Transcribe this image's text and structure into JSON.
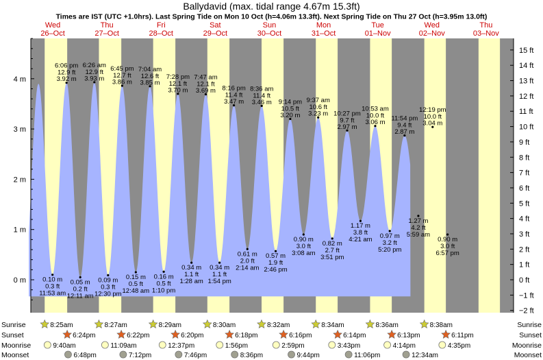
{
  "chart_data": {
    "type": "area",
    "title": "Ballydavid (max. tidal range 4.67m 15.3ft)",
    "subtitle": "Times are IST (UTC +1.0hrs). Last Spring Tide on Mon 10 Oct (h=4.06m 13.3ft). Next Spring Tide on Thu 27 Oct (h=3.95m 13.0ft)",
    "y_left_unit": "m",
    "y_left_ticks": [
      "0 m",
      "1 m",
      "2 m",
      "3 m",
      "4 m"
    ],
    "y_right_ticks": [
      "−2 ft",
      "−1 ft",
      "0 ft",
      "1 ft",
      "2 ft",
      "3 ft",
      "4 ft",
      "5 ft",
      "6 ft",
      "7 ft",
      "8 ft",
      "9 ft",
      "10 ft",
      "11 ft",
      "12 ft",
      "13 ft",
      "14 ft",
      "15 ft"
    ],
    "ylim_m": [
      -0.55,
      4.95
    ],
    "days": [
      {
        "dow": "Wed",
        "date": "26–Oct",
        "weekend": false
      },
      {
        "dow": "Thu",
        "date": "27–Oct",
        "weekend": false
      },
      {
        "dow": "Fri",
        "date": "28–Oct",
        "weekend": false
      },
      {
        "dow": "Sat",
        "date": "29–Oct",
        "weekend": true
      },
      {
        "dow": "Sun",
        "date": "30–Oct",
        "weekend": true
      },
      {
        "dow": "Mon",
        "date": "31–Oct",
        "weekend": false
      },
      {
        "dow": "Tue",
        "date": "01–Nov",
        "weekend": false
      },
      {
        "dow": "Wed",
        "date": "02–Nov",
        "weekend": false
      },
      {
        "dow": "Thu",
        "date": "03–Nov",
        "weekend": false
      }
    ],
    "daylight": [
      {
        "day": 0,
        "sunrise": 8.417,
        "sunset": 18.4
      },
      {
        "day": 1,
        "sunrise": 8.45,
        "sunset": 18.367
      },
      {
        "day": 2,
        "sunrise": 8.483,
        "sunset": 18.333
      },
      {
        "day": 3,
        "sunrise": 8.5,
        "sunset": 18.3
      },
      {
        "day": 4,
        "sunrise": 8.533,
        "sunset": 18.267
      },
      {
        "day": 5,
        "sunrise": 8.567,
        "sunset": 18.233
      },
      {
        "day": 6,
        "sunrise": 8.6,
        "sunset": 18.217
      },
      {
        "day": 7,
        "sunrise": 8.633,
        "sunset": 18.183
      },
      {
        "day": 8,
        "sunrise": 8.667,
        "sunset": 18.15
      }
    ],
    "high_tides": [
      {
        "day": 0,
        "hour": 18.1,
        "time": "6:06 pm",
        "ft": "12.9 ft",
        "m": "3.92 m",
        "value": 3.92
      },
      {
        "day": 1,
        "hour": 6.433,
        "time": "6:26 am",
        "ft": "12.9 ft",
        "m": "3.93 m",
        "value": 3.93
      },
      {
        "day": 1,
        "hour": 18.75,
        "time": "6:45 pm",
        "ft": "12.7 ft",
        "m": "3.86 m",
        "value": 3.86
      },
      {
        "day": 2,
        "hour": 7.067,
        "time": "7:04 am",
        "ft": "12.6 ft",
        "m": "3.85 m",
        "value": 3.85
      },
      {
        "day": 2,
        "hour": 19.467,
        "time": "7:28 pm",
        "ft": "12.1 ft",
        "m": "3.70 m",
        "value": 3.7
      },
      {
        "day": 3,
        "hour": 7.783,
        "time": "7:47 am",
        "ft": "12.1 ft",
        "m": "3.69 m",
        "value": 3.69
      },
      {
        "day": 3,
        "hour": 20.267,
        "time": "8:16 pm",
        "ft": "11.4 ft",
        "m": "3.47 m",
        "value": 3.47
      },
      {
        "day": 4,
        "hour": 8.6,
        "time": "8:36 am",
        "ft": "11.4 ft",
        "m": "3.46 m",
        "value": 3.46
      },
      {
        "day": 4,
        "hour": 21.233,
        "time": "9:14 pm",
        "ft": "10.5 ft",
        "m": "3.20 m",
        "value": 3.2
      },
      {
        "day": 5,
        "hour": 9.617,
        "time": "9:37 am",
        "ft": "10.6 ft",
        "m": "3.23 m",
        "value": 3.23
      },
      {
        "day": 5,
        "hour": 22.45,
        "time": "10:27 pm",
        "ft": "9.7 ft",
        "m": "2.97 m",
        "value": 2.97
      },
      {
        "day": 6,
        "hour": 10.883,
        "time": "10:53 am",
        "ft": "10.0 ft",
        "m": "3.06 m",
        "value": 3.06
      },
      {
        "day": 6,
        "hour": 23.9,
        "time": "11:54 pm",
        "ft": "9.4 ft",
        "m": "2.87 m",
        "value": 2.87
      },
      {
        "day": 7,
        "hour": 12.317,
        "time": "12:19 pm",
        "ft": "10.0 ft",
        "m": "3.04 m",
        "value": 3.04
      }
    ],
    "low_tides": [
      {
        "day": 0,
        "hour": 11.883,
        "time": "11:53 am",
        "ft": "0.3 ft",
        "m": "0.10 m",
        "value": 0.1
      },
      {
        "day": 1,
        "hour": 0.183,
        "time": "12:11 am",
        "ft": "0.2 ft",
        "m": "0.05 m",
        "value": 0.05
      },
      {
        "day": 1,
        "hour": 12.5,
        "time": "12:30 pm",
        "ft": "0.3 ft",
        "m": "0.09 m",
        "value": 0.09
      },
      {
        "day": 2,
        "hour": 0.8,
        "time": "12:48 am",
        "ft": "0.5 ft",
        "m": "0.15 m",
        "value": 0.15
      },
      {
        "day": 2,
        "hour": 13.167,
        "time": "1:10 pm",
        "ft": "0.5 ft",
        "m": "0.16 m",
        "value": 0.16
      },
      {
        "day": 3,
        "hour": 1.467,
        "time": "1:28 am",
        "ft": "1.1 ft",
        "m": "0.34 m",
        "value": 0.34
      },
      {
        "day": 3,
        "hour": 13.9,
        "time": "1:54 pm",
        "ft": "1.1 ft",
        "m": "0.34 m",
        "value": 0.34
      },
      {
        "day": 4,
        "hour": 2.233,
        "time": "2:14 am",
        "ft": "2.0 ft",
        "m": "0.61 m",
        "value": 0.61
      },
      {
        "day": 4,
        "hour": 14.767,
        "time": "2:46 pm",
        "ft": "1.9 ft",
        "m": "0.57 m",
        "value": 0.57
      },
      {
        "day": 5,
        "hour": 3.133,
        "time": "3:08 am",
        "ft": "3.0 ft",
        "m": "0.90 m",
        "value": 0.9
      },
      {
        "day": 5,
        "hour": 15.85,
        "time": "3:51 pm",
        "ft": "2.7 ft",
        "m": "0.82 m",
        "value": 0.82
      },
      {
        "day": 6,
        "hour": 4.35,
        "time": "4:21 am",
        "ft": "3.8 ft",
        "m": "1.17 m",
        "value": 1.17
      },
      {
        "day": 6,
        "hour": 17.333,
        "time": "5:20 pm",
        "ft": "3.2 ft",
        "m": "0.97 m",
        "value": 0.97
      },
      {
        "day": 7,
        "hour": 5.983,
        "time": "5:59 am",
        "ft": "4.2 ft",
        "m": "1.27 m",
        "value": 1.27
      },
      {
        "day": 7,
        "hour": 18.95,
        "time": "6:57 pm",
        "ft": "3.0 ft",
        "m": "0.90 m",
        "value": 0.9
      }
    ],
    "bottom_rows": {
      "labels": [
        "Sunrise",
        "Sunset",
        "Moonrise",
        "Moonset"
      ],
      "sunrise": [
        {
          "day": 0,
          "hour": 8.417,
          "text": "8:25am"
        },
        {
          "day": 1,
          "hour": 8.45,
          "text": "8:27am"
        },
        {
          "day": 2,
          "hour": 8.483,
          "text": "8:29am"
        },
        {
          "day": 3,
          "hour": 8.5,
          "text": "8:30am"
        },
        {
          "day": 4,
          "hour": 8.533,
          "text": "8:32am"
        },
        {
          "day": 5,
          "hour": 8.567,
          "text": "8:34am"
        },
        {
          "day": 6,
          "hour": 8.6,
          "text": "8:36am"
        },
        {
          "day": 7,
          "hour": 8.633,
          "text": "8:38am"
        }
      ],
      "sunset": [
        {
          "day": 0,
          "hour": 18.4,
          "text": "6:24pm"
        },
        {
          "day": 1,
          "hour": 18.367,
          "text": "6:22pm"
        },
        {
          "day": 2,
          "hour": 18.333,
          "text": "6:20pm"
        },
        {
          "day": 3,
          "hour": 18.3,
          "text": "6:18pm"
        },
        {
          "day": 4,
          "hour": 18.267,
          "text": "6:16pm"
        },
        {
          "day": 5,
          "hour": 18.233,
          "text": "6:14pm"
        },
        {
          "day": 6,
          "hour": 18.217,
          "text": "6:13pm"
        },
        {
          "day": 7,
          "hour": 18.183,
          "text": "6:11pm"
        }
      ],
      "moonrise": [
        {
          "day": 0,
          "hour": 9.667,
          "text": "9:40am"
        },
        {
          "day": 1,
          "hour": 11.15,
          "text": "11:09am"
        },
        {
          "day": 2,
          "hour": 12.617,
          "text": "12:37pm"
        },
        {
          "day": 3,
          "hour": 13.933,
          "text": "1:56pm"
        },
        {
          "day": 4,
          "hour": 14.983,
          "text": "2:59pm"
        },
        {
          "day": 5,
          "hour": 15.717,
          "text": "3:43pm"
        },
        {
          "day": 6,
          "hour": 16.233,
          "text": "4:14pm"
        },
        {
          "day": 7,
          "hour": 16.583,
          "text": "4:35pm"
        }
      ],
      "moonset": [
        {
          "day": 0,
          "hour": 18.8,
          "text": "6:48pm"
        },
        {
          "day": 1,
          "hour": 19.2,
          "text": "7:12pm"
        },
        {
          "day": 2,
          "hour": 19.767,
          "text": "7:46pm"
        },
        {
          "day": 3,
          "hour": 20.6,
          "text": "8:36pm"
        },
        {
          "day": 4,
          "hour": 21.733,
          "text": "9:44pm"
        },
        {
          "day": 5,
          "hour": 23.1,
          "text": "11:06pm"
        },
        {
          "day": 7,
          "hour": 0.567,
          "text": "12:34am"
        }
      ]
    },
    "colors": {
      "night": "#8c8c8c",
      "day": "#ffffc0",
      "water": "#a6b4ff",
      "day_label": "#cc0000",
      "sunrise_star": "#cccc33",
      "sunset_star": "#e06020",
      "moonrise": "#ffffc0",
      "moonset": "#a0a090"
    }
  }
}
